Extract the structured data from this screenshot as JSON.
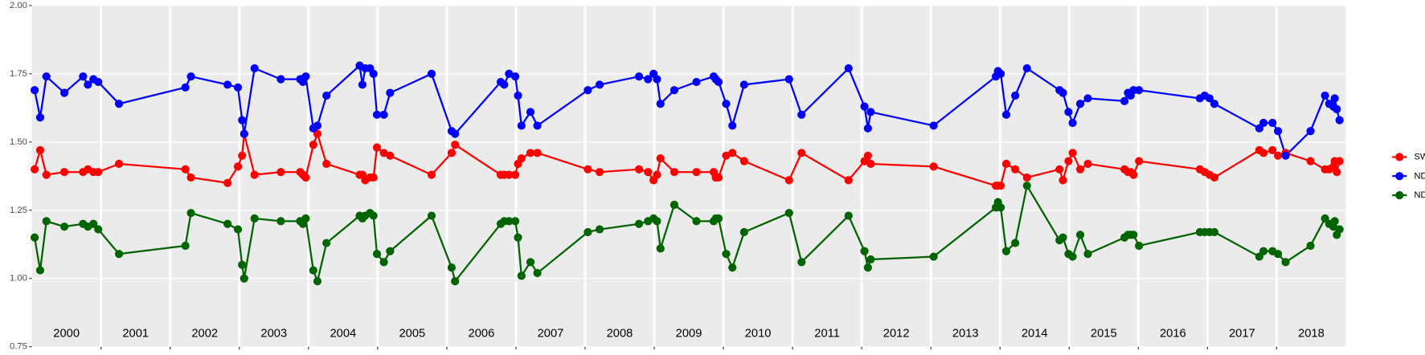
{
  "chart_data": {
    "type": "line",
    "x": [
      2000.04,
      2000.12,
      2000.21,
      2000.47,
      2000.74,
      2000.81,
      2000.89,
      2000.96,
      2001.26,
      2002.22,
      2002.3,
      2002.83,
      2002.98,
      2003.04,
      2003.07,
      2003.22,
      2003.6,
      2003.88,
      2003.92,
      2003.96,
      2004.07,
      2004.13,
      2004.26,
      2004.74,
      2004.78,
      2004.82,
      2004.89,
      2004.94,
      2004.99,
      2005.09,
      2005.18,
      2005.78,
      2006.07,
      2006.12,
      2006.78,
      2006.83,
      2006.9,
      2006.99,
      2007.03,
      2007.08,
      2007.21,
      2007.31,
      2008.04,
      2008.21,
      2008.78,
      2008.91,
      2008.99,
      2009.04,
      2009.09,
      2009.29,
      2009.61,
      2009.86,
      2009.89,
      2009.93,
      2010.04,
      2010.13,
      2010.3,
      2010.95,
      2011.13,
      2011.81,
      2012.04,
      2012.09,
      2012.13,
      2013.04,
      2013.94,
      2013.97,
      2014.01,
      2014.09,
      2014.22,
      2014.39,
      2014.86,
      2014.91,
      2014.99,
      2015.05,
      2015.16,
      2015.27,
      2015.8,
      2015.85,
      2015.89,
      2015.93,
      2016.01,
      2016.89,
      2016.96,
      2017.03,
      2017.1,
      2017.75,
      2017.81,
      2017.94,
      2018.02,
      2018.13,
      2018.49,
      2018.7,
      2018.76,
      2018.82,
      2018.84,
      2018.87,
      2018.91
    ],
    "series": [
      {
        "name": "SWIR",
        "color": "#ff0000",
        "values": [
          1.4,
          1.47,
          1.38,
          1.39,
          1.39,
          1.4,
          1.39,
          1.39,
          1.42,
          1.4,
          1.37,
          1.35,
          1.41,
          1.45,
          1.53,
          1.38,
          1.39,
          1.39,
          1.38,
          1.37,
          1.49,
          1.53,
          1.42,
          1.38,
          1.38,
          1.36,
          1.37,
          1.37,
          1.48,
          1.46,
          1.45,
          1.38,
          1.46,
          1.49,
          1.38,
          1.38,
          1.38,
          1.38,
          1.42,
          1.44,
          1.46,
          1.46,
          1.4,
          1.39,
          1.4,
          1.39,
          1.36,
          1.38,
          1.44,
          1.39,
          1.39,
          1.39,
          1.37,
          1.37,
          1.45,
          1.46,
          1.43,
          1.36,
          1.46,
          1.36,
          1.43,
          1.45,
          1.42,
          1.41,
          1.34,
          1.34,
          1.34,
          1.42,
          1.4,
          1.37,
          1.4,
          1.36,
          1.43,
          1.46,
          1.4,
          1.42,
          1.4,
          1.39,
          1.39,
          1.38,
          1.43,
          1.4,
          1.39,
          1.38,
          1.37,
          1.47,
          1.46,
          1.47,
          1.45,
          1.46,
          1.43,
          1.4,
          1.4,
          1.41,
          1.43,
          1.39,
          1.43
        ]
      },
      {
        "name": "NDVI",
        "color": "#0000ff",
        "values": [
          1.69,
          1.59,
          1.74,
          1.68,
          1.74,
          1.71,
          1.73,
          1.72,
          1.64,
          1.7,
          1.74,
          1.71,
          1.7,
          1.58,
          1.53,
          1.77,
          1.73,
          1.73,
          1.72,
          1.74,
          1.55,
          1.56,
          1.67,
          1.78,
          1.71,
          1.77,
          1.77,
          1.75,
          1.6,
          1.6,
          1.68,
          1.75,
          1.54,
          1.53,
          1.72,
          1.71,
          1.75,
          1.74,
          1.67,
          1.56,
          1.61,
          1.56,
          1.69,
          1.71,
          1.74,
          1.73,
          1.75,
          1.73,
          1.64,
          1.69,
          1.72,
          1.74,
          1.73,
          1.72,
          1.64,
          1.56,
          1.71,
          1.73,
          1.6,
          1.77,
          1.63,
          1.55,
          1.61,
          1.56,
          1.74,
          1.76,
          1.75,
          1.6,
          1.67,
          1.77,
          1.69,
          1.68,
          1.61,
          1.57,
          1.64,
          1.66,
          1.65,
          1.68,
          1.67,
          1.69,
          1.69,
          1.66,
          1.67,
          1.66,
          1.64,
          1.55,
          1.57,
          1.57,
          1.54,
          1.45,
          1.54,
          1.67,
          1.64,
          1.63,
          1.66,
          1.62,
          1.58
        ]
      },
      {
        "name": "NDWI",
        "color": "#006400",
        "values": [
          1.15,
          1.03,
          1.21,
          1.19,
          1.2,
          1.19,
          1.2,
          1.18,
          1.09,
          1.12,
          1.24,
          1.2,
          1.18,
          1.05,
          1.0,
          1.22,
          1.21,
          1.21,
          1.2,
          1.22,
          1.03,
          0.99,
          1.13,
          1.23,
          1.22,
          1.23,
          1.24,
          1.23,
          1.09,
          1.06,
          1.1,
          1.23,
          1.04,
          0.99,
          1.2,
          1.21,
          1.21,
          1.21,
          1.15,
          1.01,
          1.06,
          1.02,
          1.17,
          1.18,
          1.2,
          1.21,
          1.22,
          1.21,
          1.11,
          1.27,
          1.21,
          1.21,
          1.22,
          1.22,
          1.09,
          1.04,
          1.17,
          1.24,
          1.06,
          1.23,
          1.1,
          1.04,
          1.07,
          1.08,
          1.26,
          1.28,
          1.26,
          1.1,
          1.13,
          1.34,
          1.14,
          1.15,
          1.09,
          1.08,
          1.16,
          1.09,
          1.15,
          1.16,
          1.16,
          1.16,
          1.12,
          1.17,
          1.17,
          1.17,
          1.17,
          1.08,
          1.1,
          1.1,
          1.09,
          1.06,
          1.12,
          1.22,
          1.2,
          1.19,
          1.21,
          1.16,
          1.18
        ]
      }
    ],
    "xlim": [
      2000,
      2019
    ],
    "ylim": [
      0.75,
      2.0
    ],
    "yticks": [
      0.75,
      {
        "value": 1.0,
        "label": "1.00"
      },
      1.25,
      {
        "value": 1.5,
        "label": "1.50"
      },
      1.75,
      {
        "value": 2.0,
        "label": "2.00"
      }
    ],
    "xticks": [
      {
        "value": 2000.5,
        "label": "2000"
      },
      {
        "value": 2001.5,
        "label": "2001"
      },
      {
        "value": 2002.5,
        "label": "2002"
      },
      {
        "value": 2003.5,
        "label": "2003"
      },
      {
        "value": 2004.5,
        "label": "2004"
      },
      {
        "value": 2005.5,
        "label": "2005"
      },
      {
        "value": 2006.5,
        "label": "2006"
      },
      {
        "value": 2007.5,
        "label": "2007"
      },
      {
        "value": 2008.5,
        "label": "2008"
      },
      {
        "value": 2009.5,
        "label": "2009"
      },
      {
        "value": 2010.5,
        "label": "2010"
      },
      {
        "value": 2011.5,
        "label": "2011"
      },
      {
        "value": 2012.5,
        "label": "2012"
      },
      {
        "value": 2013.5,
        "label": "2013"
      },
      {
        "value": 2014.5,
        "label": "2014"
      },
      {
        "value": 2015.5,
        "label": "2015"
      },
      {
        "value": 2016.5,
        "label": "2016"
      },
      {
        "value": 2017.5,
        "label": "2017"
      },
      {
        "value": 2018.5,
        "label": "2018"
      }
    ],
    "vlines": [
      2001,
      2002,
      2003,
      2004,
      2005,
      2006,
      2007,
      2008,
      2009,
      2010,
      2011,
      2012,
      2013,
      2014,
      2015,
      2016,
      2017,
      2018
    ],
    "grid": true,
    "legend": "right"
  }
}
